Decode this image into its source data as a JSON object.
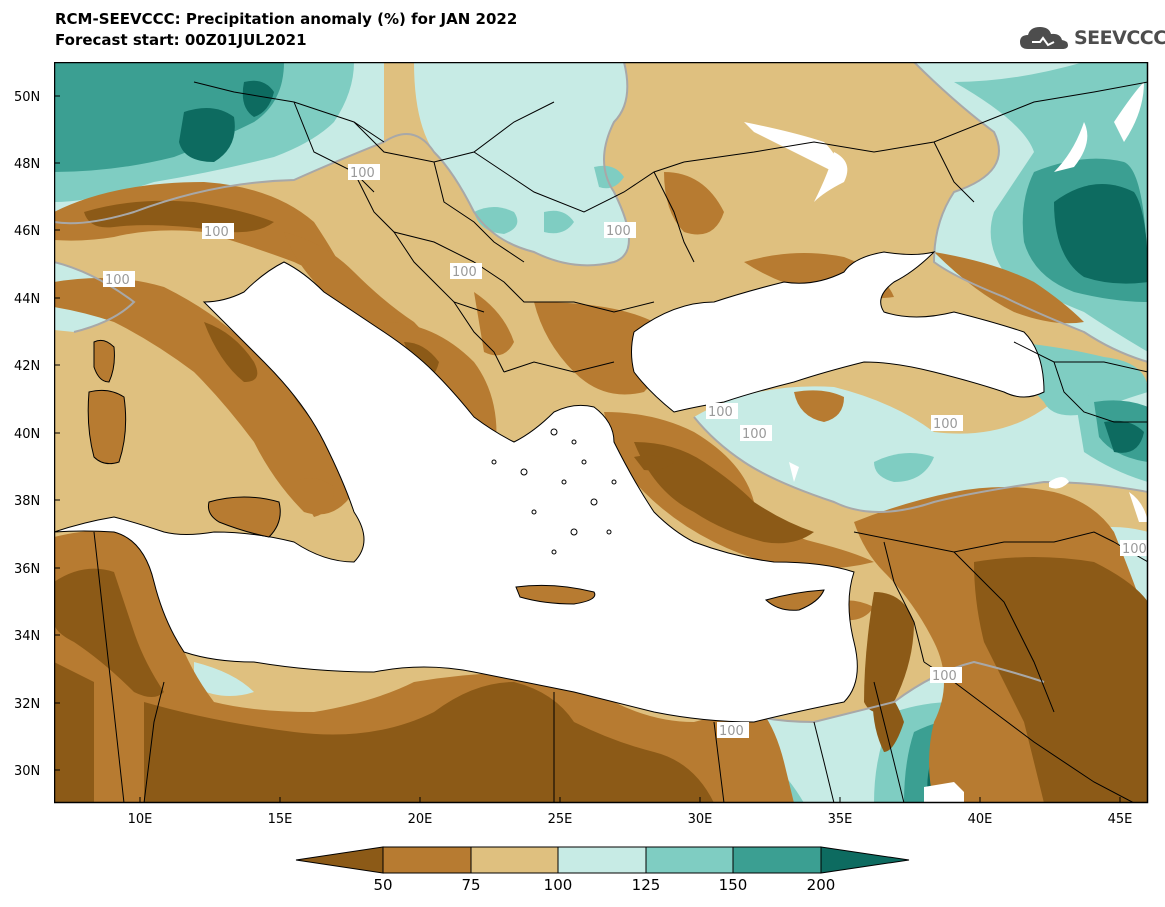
{
  "header": {
    "title": "RCM-SEEVCCC: Precipitation anomaly (%) for JAN 2022",
    "subtitle": "Forecast start: 00Z01JUL2021",
    "logo_text": "SEEVCCC"
  },
  "map": {
    "lat_labels": [
      "50N",
      "48N",
      "46N",
      "44N",
      "42N",
      "40N",
      "38N",
      "36N",
      "34N",
      "32N",
      "30N"
    ],
    "lon_labels": [
      "10E",
      "15E",
      "20E",
      "25E",
      "30E",
      "35E",
      "40E",
      "45E"
    ],
    "contour_labels": [
      "100",
      "100",
      "100",
      "100",
      "100",
      "100",
      "100",
      "100",
      "100",
      "100",
      "100"
    ]
  },
  "legend": {
    "levels": [
      "50",
      "75",
      "100",
      "125",
      "150",
      "200"
    ],
    "colors": {
      "below_50": "#8c5a17",
      "50_75": "#b77b31",
      "75_100": "#dfc07f",
      "100_125": "#c7ebe5",
      "125_150": "#7fcdc2",
      "150_200": "#3b9f92",
      "above_200": "#0d6b60"
    }
  }
}
